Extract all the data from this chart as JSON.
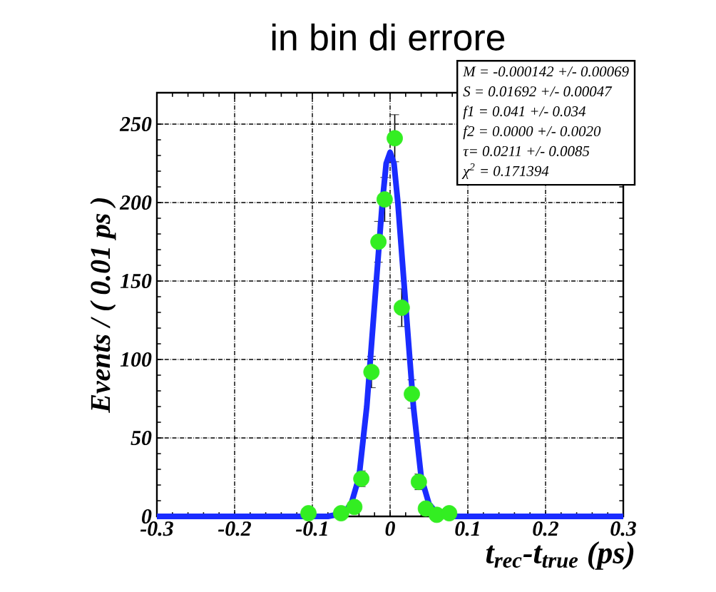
{
  "chart_data": {
    "type": "scatter",
    "title": "in bin di errore",
    "xlabel": "t$_{rec}$-t$_{true}$ (ps)",
    "ylabel": "Events / ( 0.01 ps )",
    "xlim": [
      -0.3,
      0.3
    ],
    "ylim": [
      0,
      270
    ],
    "xticks": [
      -0.3,
      -0.2,
      -0.1,
      0,
      0.1,
      0.2,
      0.3
    ],
    "yticks": [
      0,
      50,
      100,
      150,
      200,
      250
    ],
    "grid": true,
    "annotations": [
      "M = -0.000142 +/- 0.00069",
      "S = 0.01692 +/- 0.00047",
      "f1 = 0.041 +/- 0.034",
      "f2 = 0.0000 +/- 0.0020",
      "τ= 0.0211 +/- 0.0085",
      "χ$^{2}$ = 0.171394"
    ],
    "series": [
      {
        "color": "#33ee22",
        "marker": "circle",
        "x": [
          -0.105,
          -0.063,
          -0.046,
          -0.037,
          -0.024,
          -0.015,
          -0.007,
          0.006,
          0.015,
          0.028,
          0.037,
          0.046,
          0.06,
          0.076
        ],
        "values": [
          2,
          2,
          6,
          24,
          92,
          175,
          202,
          241,
          133,
          78,
          22,
          5,
          1,
          2
        ],
        "errors": [
          null,
          null,
          null,
          5,
          10,
          13,
          14,
          15,
          12,
          9,
          5,
          null,
          null,
          null
        ]
      },
      {
        "type": "line",
        "color": "#1a2cff",
        "marker": "none",
        "x": [
          -0.3,
          -0.1,
          -0.08,
          -0.06,
          -0.05,
          -0.04,
          -0.03,
          -0.02,
          -0.01,
          -0.005,
          0,
          0.005,
          0.01,
          0.02,
          0.03,
          0.04,
          0.05,
          0.06,
          0.08,
          0.1,
          0.3
        ],
        "values": [
          0,
          0,
          0,
          2,
          8,
          25,
          70,
          135,
          200,
          225,
          232,
          225,
          200,
          135,
          70,
          25,
          8,
          2,
          0,
          0,
          0
        ]
      }
    ]
  }
}
